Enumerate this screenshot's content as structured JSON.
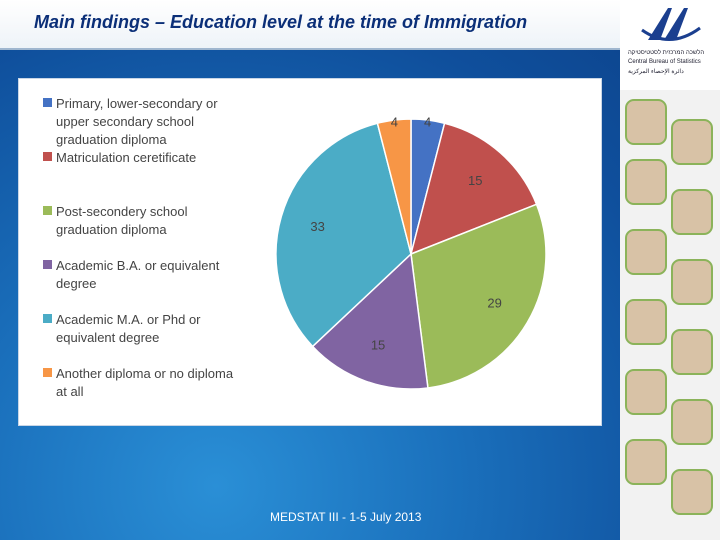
{
  "title": "Main findings – Education level at the time of Immigration",
  "footer": "MEDSTAT III - 1-5 July 2013",
  "logo": {
    "hebrew": "הלשכה המרכזית לסטטיסטיקה",
    "english": "Central Bureau of Statistics",
    "arabic": "دائرة الإحصاء المركزية"
  },
  "colors": {
    "title": "#0b2f78",
    "background": "#1a6fbb",
    "slices": [
      "#4472c4",
      "#c0504d",
      "#9bbb59",
      "#8064a2",
      "#4bacc6",
      "#f79646"
    ]
  },
  "chart_data": {
    "type": "pie",
    "title": "",
    "legend_position": "left",
    "categories": [
      "Primary, lower-secondary or upper secondary school graduation diploma",
      "Matriculation ceretificate",
      "Post-secondery school graduation diploma",
      "Academic B.A. or equivalent degree",
      "Academic M.A. or Phd or equivalent degree",
      "Another diploma or no diploma at all"
    ],
    "values": [
      4,
      15,
      29,
      15,
      33,
      4
    ],
    "data_labels": [
      "4",
      "15",
      "29",
      "15",
      "33",
      "4"
    ]
  }
}
